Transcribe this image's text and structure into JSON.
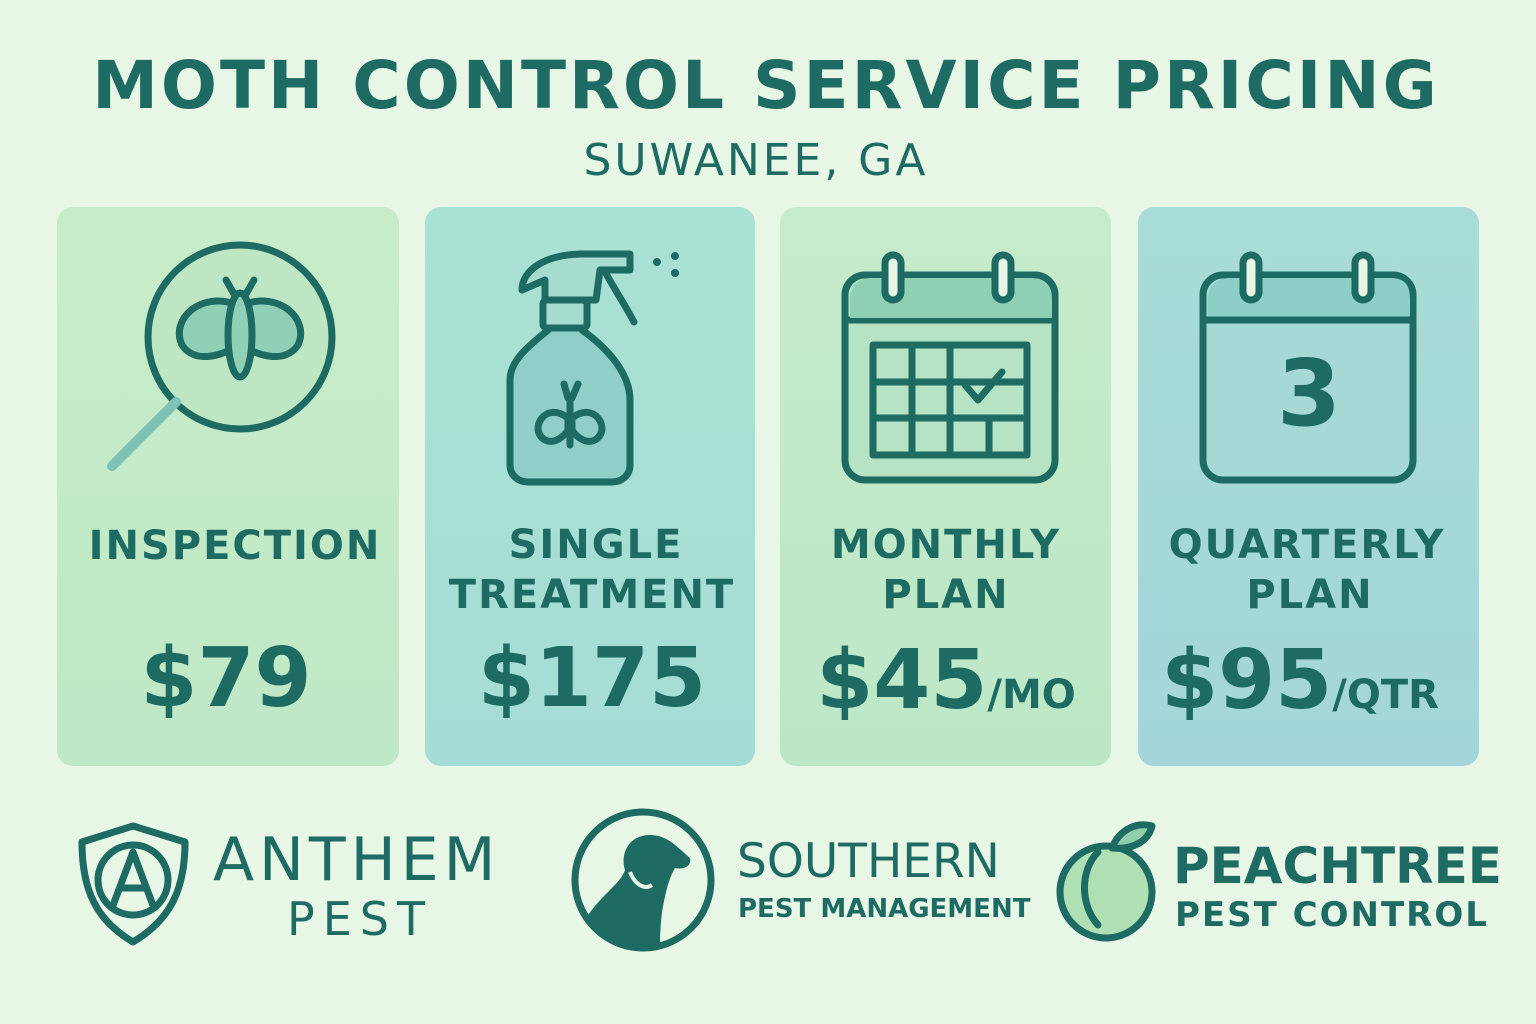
{
  "header": {
    "title": "MOTH CONTROL SERVICE PRICING",
    "subtitle": "SUWANEE, GA"
  },
  "cards": [
    {
      "label": [
        "INSPECTION"
      ],
      "price": "$79"
    },
    {
      "label": [
        "SINGLE",
        "TREATMENT"
      ],
      "price": "$175"
    },
    {
      "label": [
        "MONTHLY",
        "PLAN"
      ],
      "price": "$45",
      "unit": "/MO"
    },
    {
      "label": [
        "QUARTERLY",
        "PLAN"
      ],
      "price": "$95",
      "unit": "/QTR",
      "icon_text": "3"
    }
  ],
  "logos": [
    {
      "name": "ANTHEM",
      "tagline": "PEST"
    },
    {
      "name": "SOUTHERN",
      "tagline": "PEST MANAGEMENT"
    },
    {
      "name": "PEACHTREE",
      "tagline": "PEST CONTROL"
    }
  ]
}
